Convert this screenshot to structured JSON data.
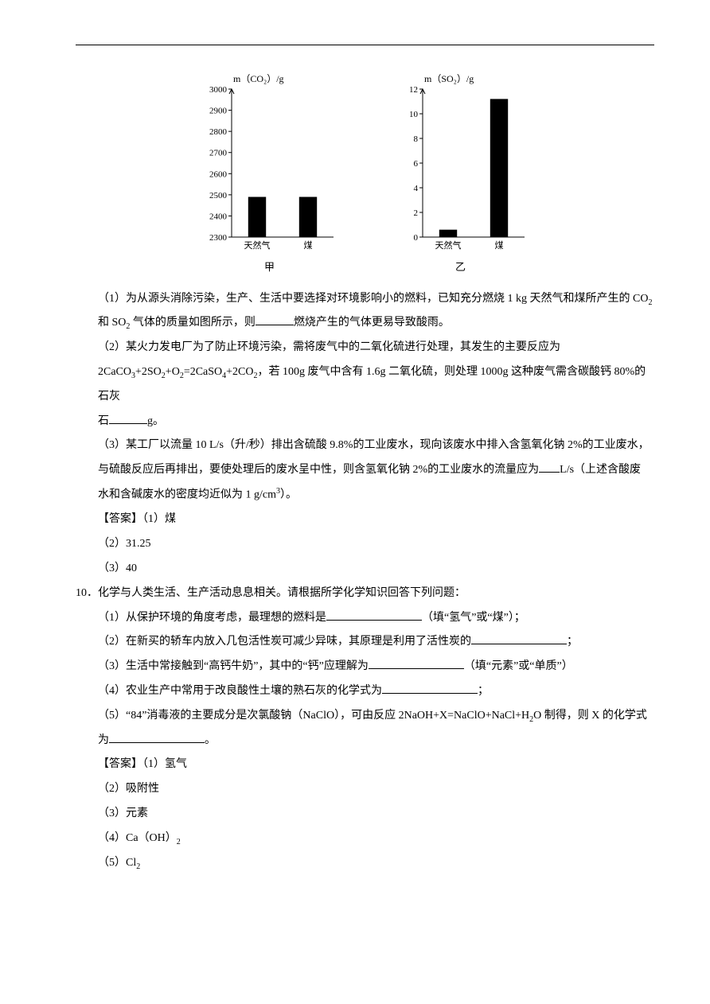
{
  "chart_left": {
    "type": "bar",
    "title": "m（CO₂）/g",
    "title_fontsize": 12,
    "categories": [
      "天然气",
      "煤"
    ],
    "values": [
      2490,
      2490
    ],
    "ylim": [
      2300,
      3000
    ],
    "ytick_step": 100,
    "ticks": [
      2300,
      2400,
      2500,
      2600,
      2700,
      2800,
      2900,
      3000
    ],
    "bar_color": "#000000",
    "bar_width": 0.35,
    "axis_color": "#000000",
    "background_color": "#ffffff",
    "label_fontsize": 11,
    "caption": "甲"
  },
  "chart_right": {
    "type": "bar",
    "title": "m（SO₂）/g",
    "title_fontsize": 12,
    "categories": [
      "天然气",
      "煤"
    ],
    "values": [
      0.6,
      11.2
    ],
    "ylim": [
      0,
      12
    ],
    "ytick_step": 2,
    "ticks": [
      0,
      2,
      4,
      6,
      8,
      10,
      12
    ],
    "bar_color": "#000000",
    "bar_width": 0.35,
    "axis_color": "#000000",
    "background_color": "#ffffff",
    "label_fontsize": 11,
    "caption": "乙"
  },
  "q9": {
    "p1_a": "（1）为从源头消除污染，生产、生活中要选择对环境影响小的燃料，已知充分燃烧 1 kg 天然气和煤所产生的 CO",
    "p1_b": "和 SO",
    "p1_c": " 气体的质量如图所示，则",
    "p1_d": "燃烧产生的气体更易导致酸雨。",
    "p2_a": "（2）某火力发电厂为了防止环境污染，需将废气中的二氧化硫进行处理，其发生的主要反应为",
    "p2_b": "2CaCO",
    "p2_c": "+2SO",
    "p2_d": "+O",
    "p2_e": "=2CaSO",
    "p2_f": "+2CO",
    "p2_g": "，若 100g 废气中含有 1.6g 二氧化硫，则处理 1000g 这种废气需含碳酸钙 80%的石灰",
    "p2_h": "石",
    "p2_i": "g。",
    "p3_a": "（3）某工厂以流量 10 L/s（升/秒）排出含硫酸 9.8%的工业废水，现向该废水中排入含氢氧化钠 2%的工业废水，",
    "p3_b": "与硫酸反应后再排出，要使处理后的废水呈中性，则含氢氧化钠 2%的工业废水的流量应为",
    "p3_c": "L/s（上述含酸废",
    "p3_d": "水和含碱废水的密度均近似为 1 g/cm",
    "p3_e": "）。",
    "ans_label": "【答案】（1）煤",
    "ans2": "（2）31.25",
    "ans3": "（3）40"
  },
  "q10": {
    "num_stem": "10．化学与人类生活、生产活动息息相关。请根据所学化学知识回答下列问题：",
    "p1_a": "（1）从保护环境的角度考虑，最理想的燃料是",
    "p1_b": "（填“氢气”或“煤”）；",
    "p2_a": "（2）在新买的轿车内放入几包活性炭可减少异味，其原理是利用了活性炭的",
    "p2_b": "；",
    "p3_a": "（3）生活中常接触到“高钙牛奶”，其中的“钙”应理解为",
    "p3_b": "（填“元素”或“单质”）",
    "p4_a": "（4）农业生产中常用于改良酸性土壤的熟石灰的化学式为",
    "p4_b": "；",
    "p5_a": "（5）“84”消毒液的主要成分是次氯酸钠（NaClO），可由反应 2NaOH+X=NaClO+NaCl+H",
    "p5_b": "O 制得，则 X 的化学式",
    "p5_c": "为",
    "p5_d": "。",
    "ans_label": "【答案】（1）氢气",
    "ans2": "（2）吸附性",
    "ans3": "（3）元素",
    "ans4a": "（4）Ca（OH）",
    "ans5a": "（5）Cl"
  }
}
